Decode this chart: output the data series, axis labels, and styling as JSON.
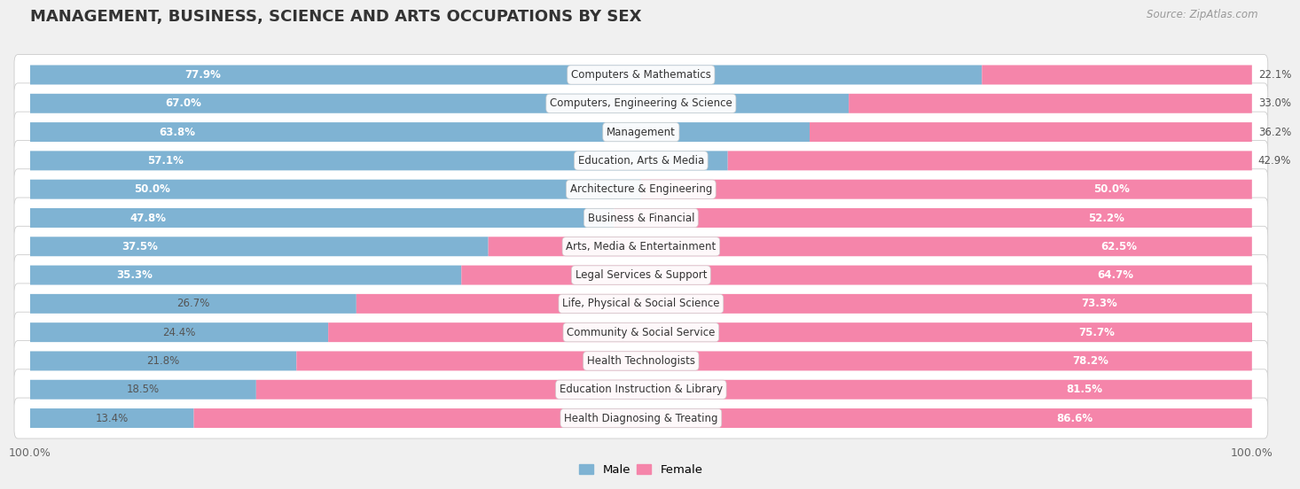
{
  "title": "MANAGEMENT, BUSINESS, SCIENCE AND ARTS OCCUPATIONS BY SEX",
  "source": "Source: ZipAtlas.com",
  "categories": [
    "Computers & Mathematics",
    "Computers, Engineering & Science",
    "Management",
    "Education, Arts & Media",
    "Architecture & Engineering",
    "Business & Financial",
    "Arts, Media & Entertainment",
    "Legal Services & Support",
    "Life, Physical & Social Science",
    "Community & Social Service",
    "Health Technologists",
    "Education Instruction & Library",
    "Health Diagnosing & Treating"
  ],
  "male_pct": [
    77.9,
    67.0,
    63.8,
    57.1,
    50.0,
    47.8,
    37.5,
    35.3,
    26.7,
    24.4,
    21.8,
    18.5,
    13.4
  ],
  "female_pct": [
    22.1,
    33.0,
    36.2,
    42.9,
    50.0,
    52.2,
    62.5,
    64.7,
    73.3,
    75.7,
    78.2,
    81.5,
    86.6
  ],
  "male_color": "#7fb3d3",
  "female_color": "#f585aa",
  "bg_color": "#f0f0f0",
  "title_fontsize": 13,
  "pct_fontsize": 8.5,
  "cat_fontsize": 8.5,
  "bar_height": 0.68
}
